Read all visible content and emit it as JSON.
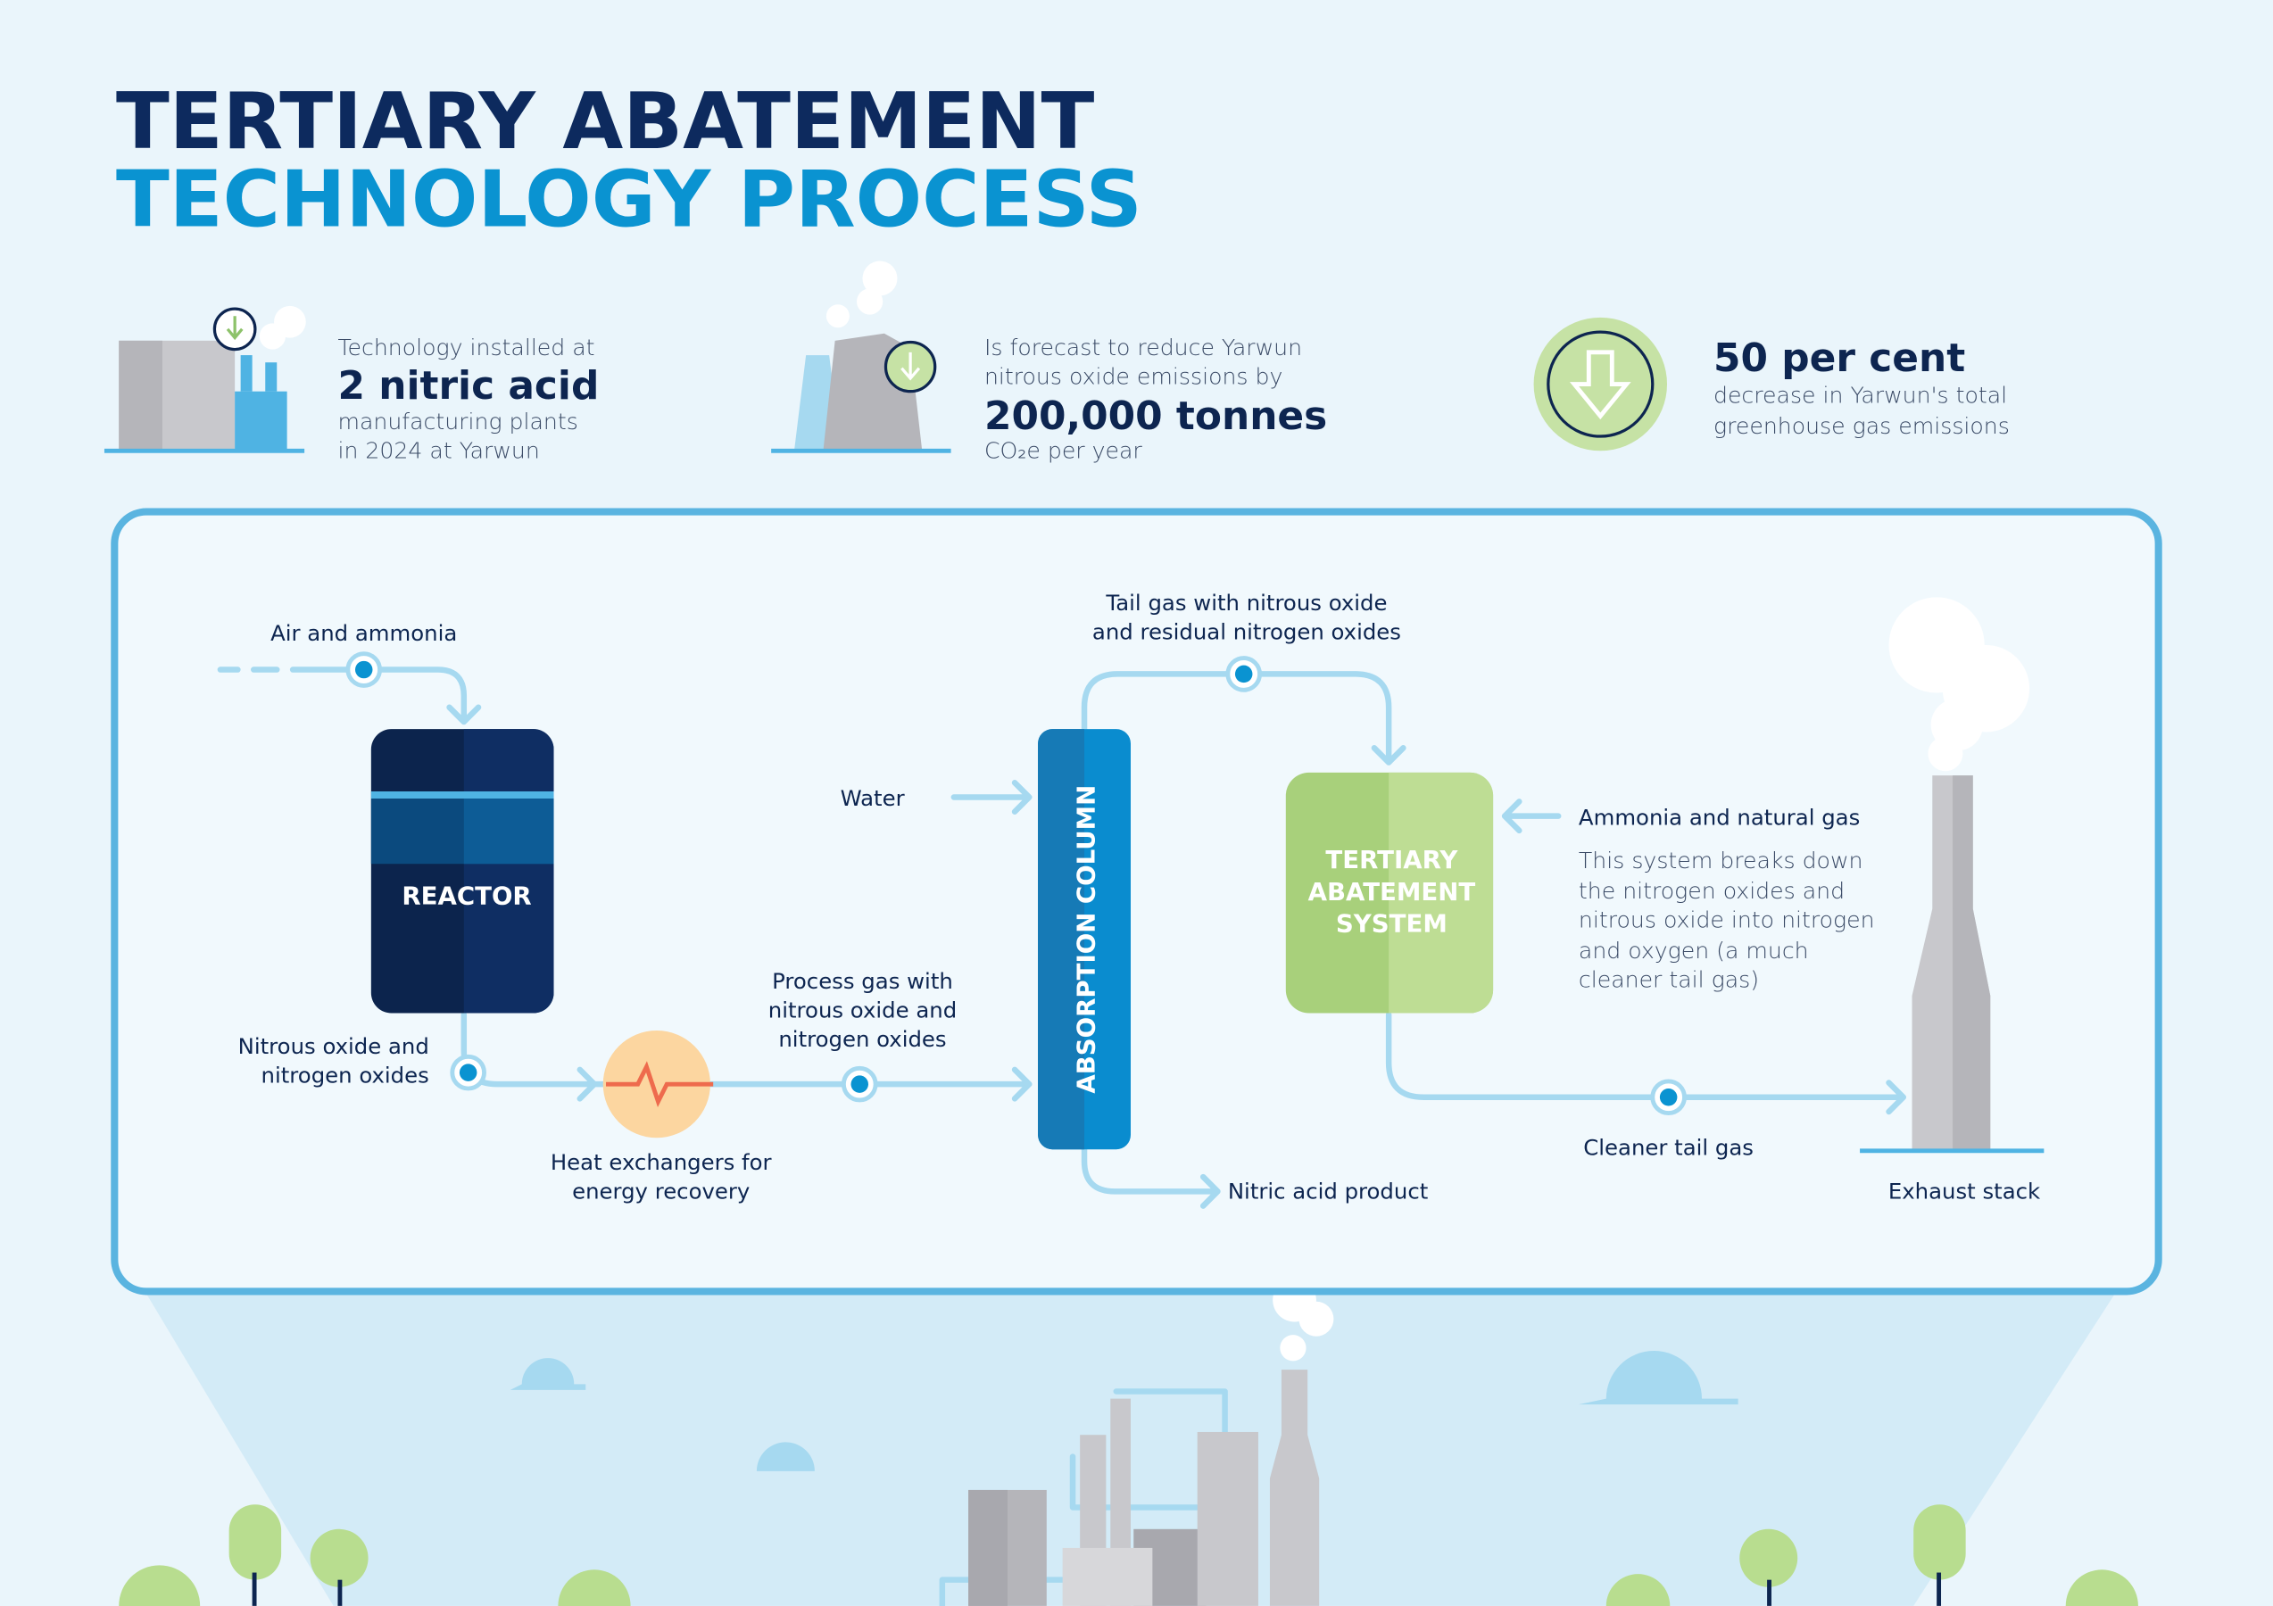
{
  "header": {
    "title_line1": "TERTIARY ABATEMENT",
    "title_line2": "TECHNOLOGY PROCESS"
  },
  "stats": [
    {
      "lines": [
        "Technology installed at",
        "2 nitric acid",
        "manufacturing plants",
        "in 2024 at Yarwun"
      ]
    },
    {
      "lines": [
        "Is forecast to reduce Yarwun",
        "nitrous oxide emissions by",
        "200,000 tonnes",
        "CO₂e per year"
      ]
    },
    {
      "lines": [
        "50 per cent",
        "decrease in Yarwun's total",
        "greenhouse gas emissions"
      ]
    }
  ],
  "diagram": {
    "air_and_ammonia": "Air and ammonia",
    "reactor": "REACTOR",
    "nitrous_oxide": [
      "Nitrous oxide and",
      "nitrogen oxides"
    ],
    "heat_exchangers": [
      "Heat exchangers for",
      "energy recovery"
    ],
    "process_gas": [
      "Process gas with",
      "nitrous oxide and",
      "nitrogen oxides"
    ],
    "water": "Water",
    "absorption_column": "ABSORPTION COLUMN",
    "tail_gas": [
      "Tail gas with nitrous oxide",
      "and residual nitrogen oxides"
    ],
    "tertiary_system": [
      "TERTIARY",
      "ABATEMENT",
      "SYSTEM"
    ],
    "ammonia_natural_gas": "Ammonia and natural gas",
    "description": [
      "This system breaks down",
      "the nitrogen oxides and",
      "nitrous oxide into nitrogen",
      "and oxygen (a much",
      "cleaner tail gas)"
    ],
    "cleaner_tail_gas": "Cleaner tail gas",
    "nitric_acid_product": "Nitric acid product",
    "exhaust_stack": "Exhaust stack"
  }
}
